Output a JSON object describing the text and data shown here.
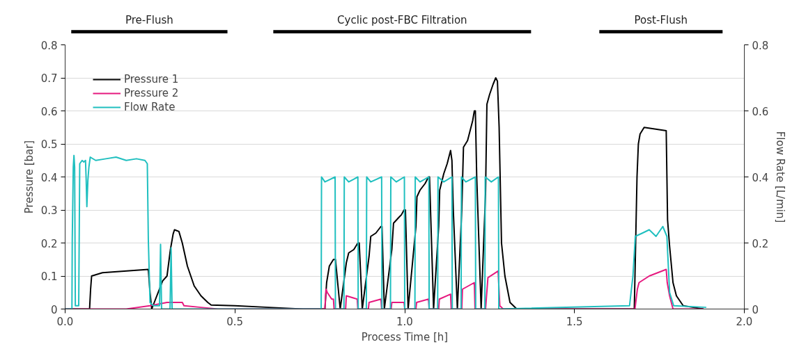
{
  "chart_data": [
    {
      "type": "bar",
      "orientation": "horizontal",
      "categories": [
        null
      ],
      "xlim": [
        0,
        2
      ],
      "tick_labels": false,
      "series": [
        {
          "name": "Pre-Flush",
          "color": "#000000",
          "base": [
            0.018
          ],
          "values": [
            0.46
          ]
        },
        {
          "name": "Cyclic post-FBC Filtration",
          "color": "#000000",
          "base": [
            0.613
          ],
          "values": [
            0.759
          ]
        },
        {
          "name": "Post-Flush",
          "color": "#000000",
          "base": [
            1.573
          ],
          "values": [
            0.363
          ]
        }
      ]
    },
    {
      "type": "line",
      "xlabel": "Process Time [h]",
      "ylabel": "Pressure [bar]",
      "y2label": "Flow Rate [L/min]",
      "xlim": [
        0,
        2
      ],
      "xticks": [
        {
          "value": 0,
          "label": "0.0"
        },
        {
          "value": 0.5,
          "label": "0.5"
        },
        {
          "value": 1,
          "label": "1.0"
        },
        {
          "value": 1.5,
          "label": "1.5"
        },
        {
          "value": 2,
          "label": "2.0"
        }
      ],
      "ylim": [
        0,
        0.8
      ],
      "yticks": [
        0,
        0.1,
        0.2,
        0.3,
        0.4,
        0.5,
        0.6,
        0.7,
        0.8
      ],
      "y2lim": [
        0,
        0.8
      ],
      "y2ticks": [
        0,
        0.2,
        0.4,
        0.6,
        0.8
      ],
      "grid": "y",
      "legend": "top left",
      "line_style": "solid",
      "marker": "none",
      "series": [
        {
          "name": "Pressure 1",
          "color": "#000000",
          "x": [
            0,
            0.072,
            0.075,
            0.078,
            0.11,
            0.245,
            0.25,
            0.255,
            0.287,
            0.3,
            0.31,
            0.318,
            0.322,
            0.335,
            0.345,
            0.36,
            0.38,
            0.4,
            0.42,
            0.43,
            0.5,
            0.6,
            0.7,
            0.765,
            0.77,
            0.778,
            0.79,
            0.796,
            0.81,
            0.828,
            0.835,
            0.85,
            0.862,
            0.866,
            0.875,
            0.895,
            0.9,
            0.915,
            0.93,
            0.933,
            0.94,
            0.962,
            0.967,
            0.985,
            0.99,
            0.998,
            1.002,
            1.01,
            1.033,
            1.036,
            1.045,
            1.06,
            1.07,
            1.073,
            1.085,
            1.1,
            1.103,
            1.115,
            1.125,
            1.135,
            1.139,
            1.143,
            1.155,
            1.168,
            1.173,
            1.185,
            1.2,
            1.205,
            1.208,
            1.212,
            1.225,
            1.238,
            1.242,
            1.25,
            1.26,
            1.268,
            1.273,
            1.278,
            1.285,
            1.295,
            1.31,
            1.33,
            1.676,
            1.68,
            1.684,
            1.688,
            1.693,
            1.705,
            1.77,
            1.774,
            1.78,
            1.79,
            1.8,
            1.82,
            1.85,
            1.88
          ],
          "values": [
            0,
            0,
            0.06,
            0.1,
            0.11,
            0.12,
            0.05,
            0,
            0.085,
            0.1,
            0.18,
            0.227,
            0.24,
            0.235,
            0.2,
            0.13,
            0.07,
            0.04,
            0.02,
            0.012,
            0.01,
            0.005,
            0,
            0,
            0.08,
            0.13,
            0.15,
            0.15,
            0,
            0.14,
            0.17,
            0.18,
            0.2,
            0.2,
            0,
            0.16,
            0.22,
            0.23,
            0.25,
            0.25,
            0,
            0.18,
            0.26,
            0.28,
            0.285,
            0.3,
            0.3,
            0,
            0.25,
            0.34,
            0.36,
            0.38,
            0.4,
            0.4,
            0,
            0.25,
            0.36,
            0.41,
            0.44,
            0.48,
            0.45,
            0.3,
            0,
            0.3,
            0.49,
            0.51,
            0.57,
            0.6,
            0.6,
            0.4,
            0,
            0.35,
            0.62,
            0.65,
            0.68,
            0.7,
            0.69,
            0.55,
            0.2,
            0.1,
            0.02,
            0,
            0,
            0.2,
            0.4,
            0.5,
            0.53,
            0.55,
            0.54,
            0.27,
            0.19,
            0.08,
            0.04,
            0.01,
            0.005,
            0
          ]
        },
        {
          "name": "Pressure 2",
          "color": "#e6197f",
          "x": [
            0,
            0.18,
            0.25,
            0.3,
            0.345,
            0.35,
            0.4,
            0.45,
            0.765,
            0.768,
            0.772,
            0.785,
            0.79,
            0.792,
            0.826,
            0.828,
            0.86,
            0.862,
            0.893,
            0.895,
            0.93,
            0.932,
            0.96,
            0.962,
            0.998,
            1.0,
            1.033,
            1.035,
            1.07,
            1.072,
            1.1,
            1.102,
            1.135,
            1.137,
            1.168,
            1.17,
            1.205,
            1.207,
            1.238,
            1.245,
            1.275,
            1.28,
            1.29,
            1.678,
            1.685,
            1.69,
            1.72,
            1.77,
            1.773,
            1.78,
            1.79,
            1.88
          ],
          "values": [
            0,
            0,
            0.01,
            0.02,
            0.02,
            0.01,
            0.005,
            0,
            0,
            0.06,
            0.05,
            0.03,
            0.03,
            0,
            0,
            0.04,
            0.03,
            0,
            0,
            0.02,
            0.03,
            0,
            0,
            0.02,
            0.02,
            0,
            0,
            0.02,
            0.03,
            0,
            0,
            0.03,
            0.045,
            0,
            0,
            0.06,
            0.08,
            0,
            0,
            0.095,
            0.115,
            0.01,
            0,
            0,
            0.06,
            0.08,
            0.1,
            0.12,
            0.08,
            0.04,
            0,
            0
          ]
        },
        {
          "name": "Flow Rate",
          "color": "#1fbfbf",
          "axis": "y2",
          "x": [
            0,
            0.02,
            0.021,
            0.024,
            0.026,
            0.028,
            0.03,
            0.04,
            0.043,
            0.05,
            0.055,
            0.06,
            0.062,
            0.064,
            0.067,
            0.07,
            0.074,
            0.09,
            0.12,
            0.15,
            0.18,
            0.21,
            0.235,
            0.242,
            0.245,
            0.25,
            0.26,
            0.278,
            0.281,
            0.284,
            0.309,
            0.312,
            0.315,
            0.754,
            0.755,
            0.765,
            0.795,
            0.796,
            0.821,
            0.822,
            0.835,
            0.862,
            0.863,
            0.887,
            0.888,
            0.9,
            0.932,
            0.933,
            0.958,
            0.959,
            0.975,
            0.999,
            1.0,
            1.03,
            1.031,
            1.045,
            1.071,
            1.072,
            1.097,
            1.098,
            1.115,
            1.139,
            1.14,
            1.166,
            1.167,
            1.18,
            1.208,
            1.209,
            1.236,
            1.237,
            1.255,
            1.276,
            1.277,
            1.662,
            1.672,
            1.679,
            1.7,
            1.72,
            1.74,
            1.76,
            1.772,
            1.78,
            1.792,
            1.888
          ],
          "values": [
            0,
            0,
            0.21,
            0.43,
            0.465,
            0.43,
            0.01,
            0.01,
            0.44,
            0.45,
            0.445,
            0.45,
            0.39,
            0.31,
            0.39,
            0.43,
            0.46,
            0.45,
            0.455,
            0.46,
            0.45,
            0.455,
            0.45,
            0.44,
            0.21,
            0.02,
            0.01,
            0.01,
            0.196,
            0,
            0,
            0.185,
            0,
            0,
            0.4,
            0.385,
            0.4,
            0,
            0,
            0.4,
            0.385,
            0.4,
            0,
            0,
            0.4,
            0.385,
            0.4,
            0,
            0,
            0.4,
            0.385,
            0.4,
            0,
            0,
            0.4,
            0.385,
            0.4,
            0,
            0,
            0.4,
            0.385,
            0.4,
            0,
            0,
            0.4,
            0.385,
            0.4,
            0,
            0,
            0.4,
            0.385,
            0.4,
            0,
            0.01,
            0.1,
            0.22,
            0.23,
            0.24,
            0.22,
            0.25,
            0.22,
            0.05,
            0.01,
            0.005
          ]
        }
      ]
    }
  ]
}
